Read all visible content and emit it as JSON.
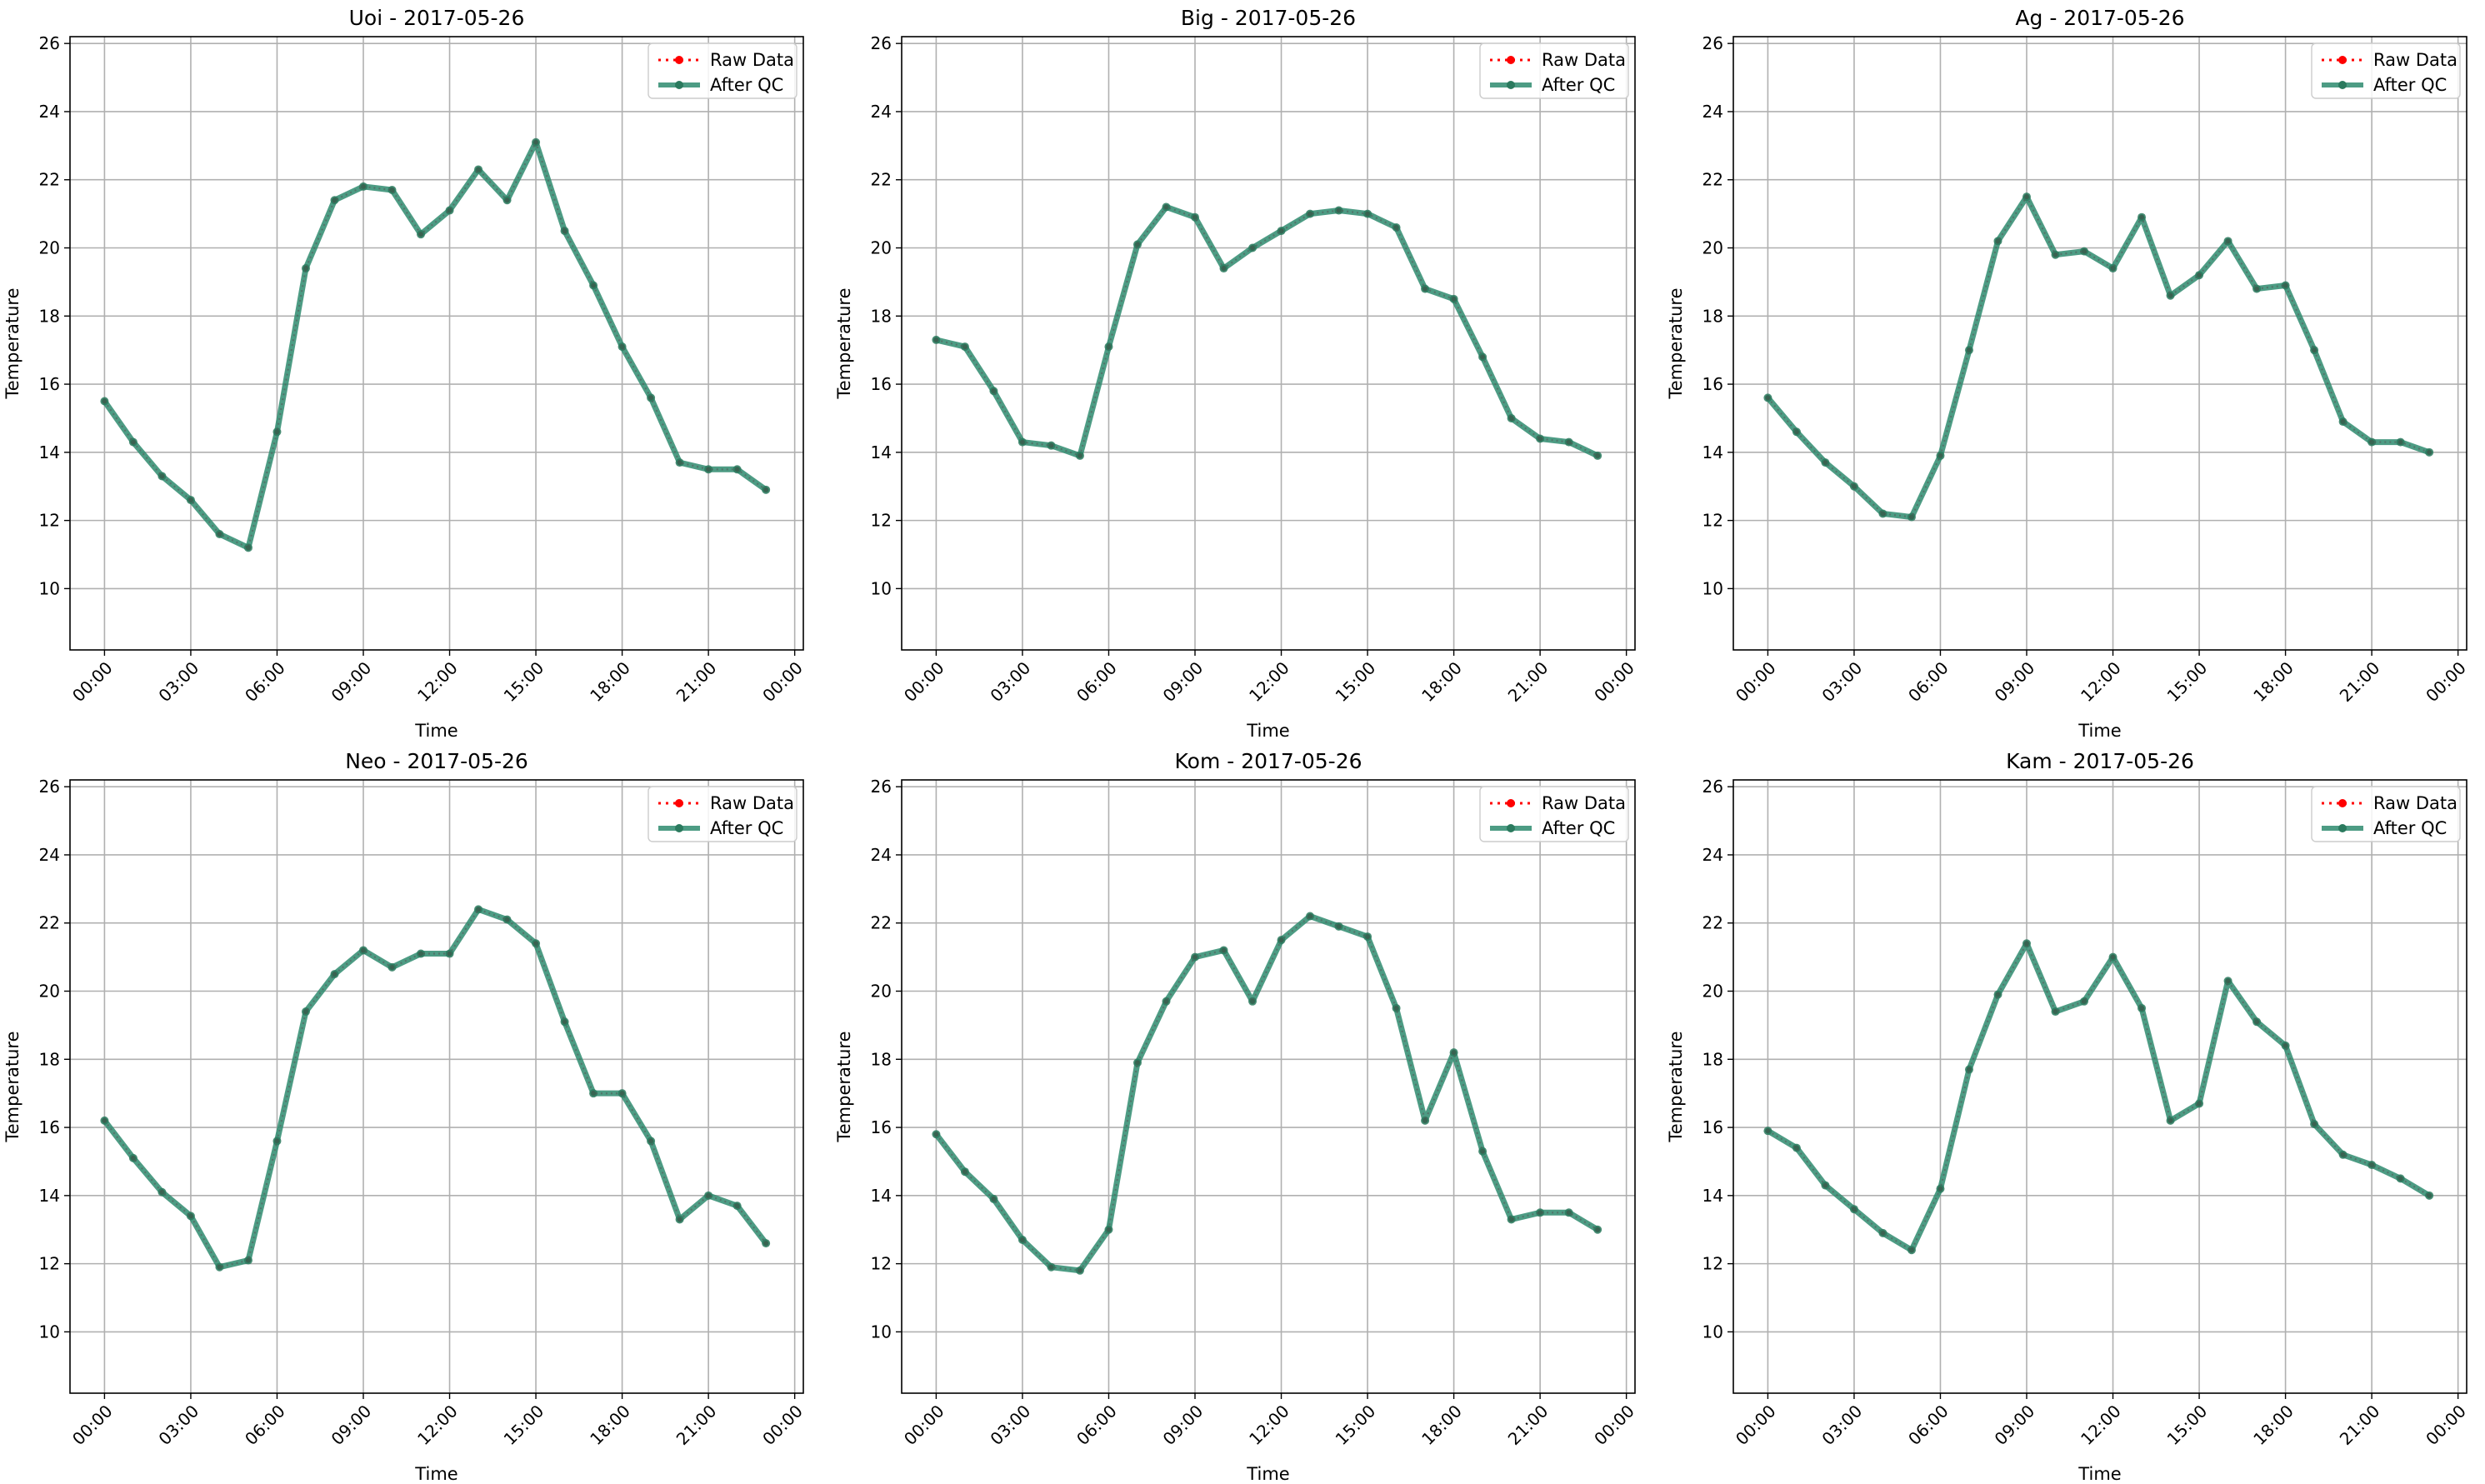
{
  "figure": {
    "xlabel": "Time",
    "ylabel": "Temperature",
    "legend": {
      "raw_label": "Raw Data",
      "qc_label": "After QC",
      "placement": "upper-right"
    }
  },
  "colors": {
    "raw": "#ff0000",
    "qc": "#2e8b6e",
    "qc_marker": "#2b7a5e",
    "grid": "#b0b0b0"
  },
  "chart_data": [
    {
      "type": "line",
      "title": "Uoi - 2017-05-26",
      "xlabel": "Time",
      "ylabel": "Temperature",
      "x_ticks": [
        "00:00",
        "03:00",
        "06:00",
        "09:00",
        "12:00",
        "15:00",
        "18:00",
        "21:00",
        "00:00"
      ],
      "y_ticks": [
        "10",
        "12",
        "14",
        "16",
        "18",
        "20",
        "22",
        "24",
        "26"
      ],
      "xlim": [
        -1.2,
        24.3
      ],
      "ylim": [
        8.2,
        26.2
      ],
      "grid": true,
      "x": [
        0,
        1,
        2,
        3,
        4,
        5,
        6,
        7,
        8,
        9,
        10,
        11,
        12,
        13,
        14,
        15,
        16,
        17,
        18,
        19,
        20,
        21,
        22,
        23
      ],
      "series": [
        {
          "name": "Raw Data",
          "values": [
            15.5,
            14.3,
            13.3,
            12.6,
            11.6,
            11.2,
            14.6,
            19.4,
            21.4,
            21.8,
            21.7,
            20.4,
            21.1,
            22.3,
            21.4,
            23.1,
            20.5,
            18.9,
            17.1,
            15.6,
            13.7,
            13.5,
            13.5,
            12.9
          ]
        },
        {
          "name": "After QC",
          "values": [
            15.5,
            14.3,
            13.3,
            12.6,
            11.6,
            11.2,
            14.6,
            19.4,
            21.4,
            21.8,
            21.7,
            20.4,
            21.1,
            22.3,
            21.4,
            23.1,
            20.5,
            18.9,
            17.1,
            15.6,
            13.7,
            13.5,
            13.5,
            12.9
          ]
        }
      ]
    },
    {
      "type": "line",
      "title": "Big - 2017-05-26",
      "xlabel": "Time",
      "ylabel": "Temperature",
      "x_ticks": [
        "00:00",
        "03:00",
        "06:00",
        "09:00",
        "12:00",
        "15:00",
        "18:00",
        "21:00",
        "00:00"
      ],
      "y_ticks": [
        "10",
        "12",
        "14",
        "16",
        "18",
        "20",
        "22",
        "24",
        "26"
      ],
      "xlim": [
        -1.2,
        24.3
      ],
      "ylim": [
        8.2,
        26.2
      ],
      "grid": true,
      "x": [
        0,
        1,
        2,
        3,
        4,
        5,
        6,
        7,
        8,
        9,
        10,
        11,
        12,
        13,
        14,
        15,
        16,
        17,
        18,
        19,
        20,
        21,
        22,
        23
      ],
      "series": [
        {
          "name": "Raw Data",
          "values": [
            17.3,
            17.1,
            15.8,
            14.3,
            14.2,
            13.9,
            17.1,
            20.1,
            21.2,
            20.9,
            19.4,
            20.0,
            20.5,
            21.0,
            21.1,
            21.0,
            20.6,
            18.8,
            18.5,
            16.8,
            15.0,
            14.4,
            14.3,
            13.9
          ]
        },
        {
          "name": "After QC",
          "values": [
            17.3,
            17.1,
            15.8,
            14.3,
            14.2,
            13.9,
            17.1,
            20.1,
            21.2,
            20.9,
            19.4,
            20.0,
            20.5,
            21.0,
            21.1,
            21.0,
            20.6,
            18.8,
            18.5,
            16.8,
            15.0,
            14.4,
            14.3,
            13.9
          ]
        }
      ]
    },
    {
      "type": "line",
      "title": "Ag - 2017-05-26",
      "xlabel": "Time",
      "ylabel": "Temperature",
      "x_ticks": [
        "00:00",
        "03:00",
        "06:00",
        "09:00",
        "12:00",
        "15:00",
        "18:00",
        "21:00",
        "00:00"
      ],
      "y_ticks": [
        "10",
        "12",
        "14",
        "16",
        "18",
        "20",
        "22",
        "24",
        "26"
      ],
      "xlim": [
        -1.2,
        24.3
      ],
      "ylim": [
        8.2,
        26.2
      ],
      "grid": true,
      "x": [
        0,
        1,
        2,
        3,
        4,
        5,
        6,
        7,
        8,
        9,
        10,
        11,
        12,
        13,
        14,
        15,
        16,
        17,
        18,
        19,
        20,
        21,
        22,
        23
      ],
      "series": [
        {
          "name": "Raw Data",
          "values": [
            15.6,
            14.6,
            13.7,
            13.0,
            12.2,
            12.1,
            13.9,
            17.0,
            20.2,
            21.5,
            19.8,
            19.9,
            19.4,
            20.9,
            18.6,
            19.2,
            20.2,
            18.8,
            18.9,
            17.0,
            14.9,
            14.3,
            14.3,
            14.0
          ]
        },
        {
          "name": "After QC",
          "values": [
            15.6,
            14.6,
            13.7,
            13.0,
            12.2,
            12.1,
            13.9,
            17.0,
            20.2,
            21.5,
            19.8,
            19.9,
            19.4,
            20.9,
            18.6,
            19.2,
            20.2,
            18.8,
            18.9,
            17.0,
            14.9,
            14.3,
            14.3,
            14.0
          ]
        }
      ]
    },
    {
      "type": "line",
      "title": "Neo - 2017-05-26",
      "xlabel": "Time",
      "ylabel": "Temperature",
      "x_ticks": [
        "00:00",
        "03:00",
        "06:00",
        "09:00",
        "12:00",
        "15:00",
        "18:00",
        "21:00",
        "00:00"
      ],
      "y_ticks": [
        "10",
        "12",
        "14",
        "16",
        "18",
        "20",
        "22",
        "24",
        "26"
      ],
      "xlim": [
        -1.2,
        24.3
      ],
      "ylim": [
        8.2,
        26.2
      ],
      "grid": true,
      "x": [
        0,
        1,
        2,
        3,
        4,
        5,
        6,
        7,
        8,
        9,
        10,
        11,
        12,
        13,
        14,
        15,
        16,
        17,
        18,
        19,
        20,
        21,
        22,
        23
      ],
      "series": [
        {
          "name": "Raw Data",
          "values": [
            16.2,
            15.1,
            14.1,
            13.4,
            11.9,
            12.1,
            15.6,
            19.4,
            20.5,
            21.2,
            20.7,
            21.1,
            21.1,
            22.4,
            22.1,
            21.4,
            19.1,
            17.0,
            17.0,
            15.6,
            13.3,
            14.0,
            13.7,
            12.6
          ]
        },
        {
          "name": "After QC",
          "values": [
            16.2,
            15.1,
            14.1,
            13.4,
            11.9,
            12.1,
            15.6,
            19.4,
            20.5,
            21.2,
            20.7,
            21.1,
            21.1,
            22.4,
            22.1,
            21.4,
            19.1,
            17.0,
            17.0,
            15.6,
            13.3,
            14.0,
            13.7,
            12.6
          ]
        }
      ]
    },
    {
      "type": "line",
      "title": "Kom - 2017-05-26",
      "xlabel": "Time",
      "ylabel": "Temperature",
      "x_ticks": [
        "00:00",
        "03:00",
        "06:00",
        "09:00",
        "12:00",
        "15:00",
        "18:00",
        "21:00",
        "00:00"
      ],
      "y_ticks": [
        "10",
        "12",
        "14",
        "16",
        "18",
        "20",
        "22",
        "24",
        "26"
      ],
      "xlim": [
        -1.2,
        24.3
      ],
      "ylim": [
        8.2,
        26.2
      ],
      "grid": true,
      "x": [
        0,
        1,
        2,
        3,
        4,
        5,
        6,
        7,
        8,
        9,
        10,
        11,
        12,
        13,
        14,
        15,
        16,
        17,
        18,
        19,
        20,
        21,
        22,
        23
      ],
      "series": [
        {
          "name": "Raw Data",
          "values": [
            15.8,
            14.7,
            13.9,
            12.7,
            11.9,
            11.8,
            13.0,
            17.9,
            19.7,
            21.0,
            21.2,
            19.7,
            21.5,
            22.2,
            21.9,
            21.6,
            19.5,
            16.2,
            18.2,
            15.3,
            13.3,
            13.5,
            13.5,
            13.0
          ]
        },
        {
          "name": "After QC",
          "values": [
            15.8,
            14.7,
            13.9,
            12.7,
            11.9,
            11.8,
            13.0,
            17.9,
            19.7,
            21.0,
            21.2,
            19.7,
            21.5,
            22.2,
            21.9,
            21.6,
            19.5,
            16.2,
            18.2,
            15.3,
            13.3,
            13.5,
            13.5,
            13.0
          ]
        }
      ]
    },
    {
      "type": "line",
      "title": "Kam - 2017-05-26",
      "xlabel": "Time",
      "ylabel": "Temperature",
      "x_ticks": [
        "00:00",
        "03:00",
        "06:00",
        "09:00",
        "12:00",
        "15:00",
        "18:00",
        "21:00",
        "00:00"
      ],
      "y_ticks": [
        "10",
        "12",
        "14",
        "16",
        "18",
        "20",
        "22",
        "24",
        "26"
      ],
      "xlim": [
        -1.2,
        24.3
      ],
      "ylim": [
        8.2,
        26.2
      ],
      "grid": true,
      "x": [
        0,
        1,
        2,
        3,
        4,
        5,
        6,
        7,
        8,
        9,
        10,
        11,
        12,
        13,
        14,
        15,
        16,
        17,
        18,
        19,
        20,
        21,
        22,
        23
      ],
      "series": [
        {
          "name": "Raw Data",
          "values": [
            15.9,
            15.4,
            14.3,
            13.6,
            12.9,
            12.4,
            14.2,
            17.7,
            19.9,
            21.4,
            19.4,
            19.7,
            21.0,
            19.5,
            16.2,
            16.7,
            20.3,
            19.1,
            18.4,
            16.1,
            15.2,
            14.9,
            14.5,
            14.0
          ]
        },
        {
          "name": "After QC",
          "values": [
            15.9,
            15.4,
            14.3,
            13.6,
            12.9,
            12.4,
            14.2,
            17.7,
            19.9,
            21.4,
            19.4,
            19.7,
            21.0,
            19.5,
            16.2,
            16.7,
            20.3,
            19.1,
            18.4,
            16.1,
            15.2,
            14.9,
            14.5,
            14.0
          ]
        }
      ]
    }
  ]
}
